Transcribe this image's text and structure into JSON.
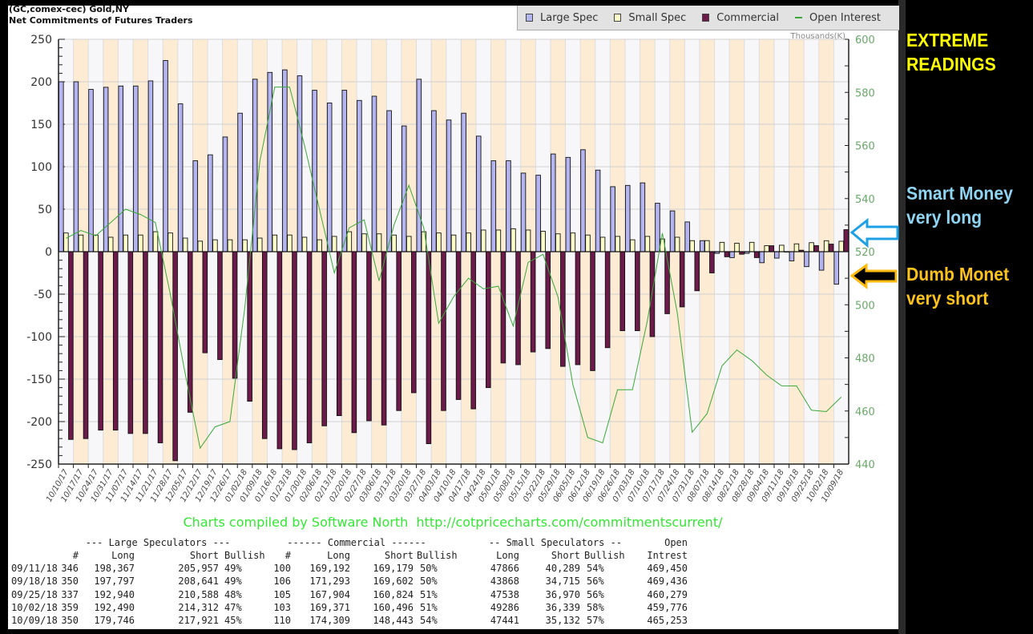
{
  "header": {
    "line1": "(GC,comex-cec) Gold,NY",
    "line2": "Net Commitments of Futures Traders"
  },
  "legend": [
    {
      "label": "Large Spec",
      "color": "#b4b4f0"
    },
    {
      "label": "Small Spec",
      "color": "#ffffc8"
    },
    {
      "label": "Commercial",
      "color": "#6b1a4a"
    },
    {
      "label": "Open Interest",
      "color": "#3aa83a"
    }
  ],
  "right_axis_unit": "Thousands(K)",
  "footer": "Charts compiled by Software North  http://cotpricecharts.com/commitmentscurrent/",
  "annotations": {
    "extreme": [
      "EXTREME",
      "READINGS"
    ],
    "smart": [
      "Smart Money",
      "very long"
    ],
    "dumb": [
      "Dumb Monet",
      "very short"
    ],
    "colors": {
      "extreme": "#ffff00",
      "smart": "#8fd4f2",
      "dumb": "#ffc21a",
      "smart_arrow": "#1ea0e6",
      "dumb_arrow": "#ffbb10"
    }
  },
  "table": {
    "group_headers": [
      "--- Large Speculators ---",
      "------ Commercial ------",
      "-- Small Speculators --",
      "Open"
    ],
    "col_headers": [
      "#",
      "Long",
      "Short",
      "Bullish",
      "#",
      "Long",
      "Short",
      "Bullish",
      "Long",
      "Short",
      "Bullish",
      "Intrest"
    ],
    "rows": [
      [
        "09/11/18",
        "346",
        "198,367",
        "205,957",
        "49%",
        "100",
        "169,192",
        "169,179",
        "50%",
        "47866",
        "40,289",
        "54%",
        "469,450"
      ],
      [
        "09/18/18",
        "350",
        "197,797",
        "208,641",
        "49%",
        "106",
        "171,293",
        "169,602",
        "50%",
        "43868",
        "34,715",
        "56%",
        "469,436"
      ],
      [
        "09/25/18",
        "337",
        "192,940",
        "210,588",
        "48%",
        "105",
        "167,904",
        "160,824",
        "51%",
        "47538",
        "36,970",
        "56%",
        "460,279"
      ],
      [
        "10/02/18",
        "359",
        "192,490",
        "214,312",
        "47%",
        "103",
        "169,371",
        "160,496",
        "51%",
        "49286",
        "36,339",
        "58%",
        "459,776"
      ],
      [
        "10/09/18",
        "350",
        "179,746",
        "217,921",
        "45%",
        "110",
        "174,309",
        "148,443",
        "54%",
        "47441",
        "35,132",
        "57%",
        "465,253"
      ]
    ]
  },
  "chart_data": {
    "type": "bar",
    "title": "Net Commitments of Futures Traders",
    "subtitle": "(GC,comex-cec) Gold,NY",
    "categories": [
      "10/10/17",
      "10/17/17",
      "10/24/17",
      "10/31/17",
      "11/07/17",
      "11/14/17",
      "11/21/17",
      "11/28/17",
      "12/05/17",
      "12/12/17",
      "12/19/17",
      "12/26/17",
      "01/02/18",
      "01/09/18",
      "01/16/18",
      "01/23/18",
      "01/30/18",
      "02/06/18",
      "02/13/18",
      "02/20/18",
      "02/27/18",
      "03/06/18",
      "03/13/18",
      "03/20/18",
      "03/27/18",
      "04/03/18",
      "04/10/18",
      "04/17/18",
      "04/24/18",
      "05/01/18",
      "05/08/18",
      "05/15/18",
      "05/22/18",
      "05/29/18",
      "06/05/18",
      "06/12/18",
      "06/19/18",
      "06/26/18",
      "07/03/18",
      "07/10/18",
      "07/17/18",
      "07/24/18",
      "07/31/18",
      "08/07/18",
      "08/14/18",
      "08/21/18",
      "08/28/18",
      "09/04/18",
      "09/11/18",
      "09/18/18",
      "09/25/18",
      "10/02/18",
      "10/09/18"
    ],
    "series": [
      {
        "name": "Large Spec",
        "axis": "left",
        "type": "bar",
        "values": [
          200,
          200,
          191,
          193.5,
          195,
          195,
          201,
          225,
          174,
          107,
          114,
          135,
          163,
          203,
          211,
          214,
          207,
          190,
          175,
          190,
          178,
          183,
          166,
          148,
          203,
          166,
          155,
          163,
          136,
          107,
          107,
          92.5,
          90,
          115,
          111,
          120,
          96,
          76.5,
          78,
          81,
          57,
          48,
          35,
          13,
          -2,
          -7,
          -2,
          -13,
          -7.6,
          -10.8,
          -17.6,
          -21.8,
          -38.2
        ]
      },
      {
        "name": "Small Spec",
        "axis": "left",
        "type": "bar",
        "values": [
          22,
          19.6,
          19.6,
          17,
          19.6,
          19.6,
          23.5,
          22,
          16,
          12.4,
          14,
          14,
          14,
          16,
          19.6,
          19.6,
          17,
          14,
          18,
          23.5,
          21,
          21,
          19.6,
          18,
          23.5,
          22,
          19.6,
          22,
          25.5,
          25.5,
          27,
          25.5,
          24,
          21,
          22,
          19.6,
          17,
          18,
          14,
          18,
          15,
          17,
          13,
          13,
          11,
          10,
          11,
          7,
          7.6,
          9.2,
          10.6,
          12.9,
          12.3
        ]
      },
      {
        "name": "Commercial",
        "axis": "left",
        "type": "bar",
        "values": [
          -221,
          -220,
          -210,
          -210,
          -214,
          -214,
          -225,
          -246,
          -189,
          -119,
          -127,
          -149,
          -176,
          -220,
          -232,
          -233,
          -225,
          -205,
          -193,
          -213,
          -199,
          -204,
          -187,
          -166,
          -226,
          -187,
          -174,
          -185,
          -160,
          -131,
          -133,
          -118,
          -114,
          -135,
          -133,
          -140,
          -113,
          -93,
          -93,
          -100,
          -73,
          -65,
          -46,
          -25,
          -6,
          -3,
          -7,
          7,
          0,
          1.7,
          7.1,
          8.9,
          25.9
        ]
      },
      {
        "name": "Open Interest",
        "axis": "right",
        "type": "line",
        "values": [
          525,
          528,
          526,
          531,
          536,
          534,
          531,
          504,
          474,
          446,
          454,
          456,
          499,
          554,
          582,
          582,
          560,
          536,
          512,
          529,
          532,
          509,
          530,
          545,
          529,
          493,
          503,
          510,
          506,
          507,
          492,
          516,
          519,
          503,
          470,
          450,
          448,
          468,
          468,
          494,
          527,
          497,
          452,
          459,
          477,
          483,
          479,
          473.5,
          469.45,
          469.44,
          460.28,
          459.78,
          465.25
        ]
      }
    ],
    "y_left": {
      "range": [
        -250,
        250
      ],
      "ticks": [
        "250",
        "200",
        "150",
        "100",
        "50",
        "0",
        "-50",
        "-100",
        "-150",
        "-200",
        "-250"
      ],
      "grid": true
    },
    "y_right": {
      "range": [
        440,
        600
      ],
      "label": "Thousands(K)",
      "ticks": [
        "600",
        "580",
        "560",
        "540",
        "520",
        "500",
        "480",
        "460",
        "440"
      ]
    },
    "legend_position": "top-right"
  }
}
